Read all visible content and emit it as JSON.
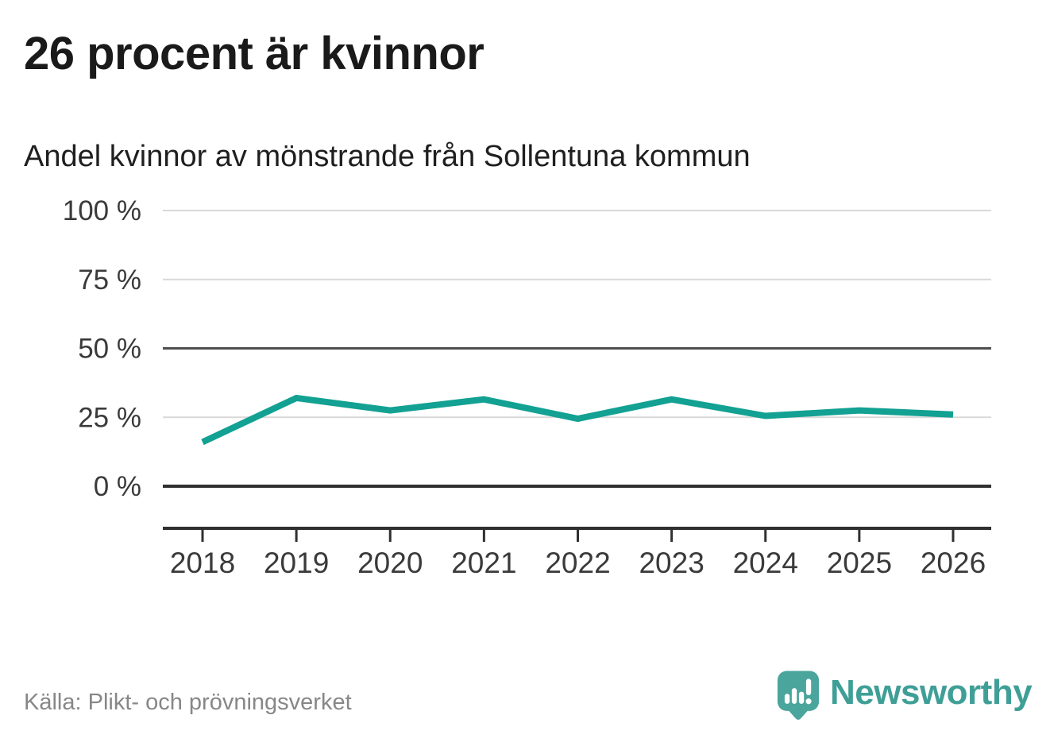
{
  "header": {
    "title": "26 procent är kvinnor",
    "subtitle": "Andel kvinnor av mönstrande från Sollentuna kommun"
  },
  "footer": {
    "source": "Källa: Plikt- och prövningsverket",
    "brand": "Newsworthy"
  },
  "colors": {
    "line": "#12a192",
    "grid_light": "#d9d9d9",
    "grid_mid": "#4f4f4f",
    "grid_zero": "#303030",
    "axis": "#303030",
    "axis_label": "#3a3a3a",
    "logo_bubble": "#4aa59d",
    "logo_wordmark": "#3f9f97"
  },
  "chart_data": {
    "type": "line",
    "title": "Andel kvinnor av mönstrande från Sollentuna kommun",
    "x": [
      "2018",
      "2019",
      "2020",
      "2021",
      "2022",
      "2023",
      "2024",
      "2025",
      "2026"
    ],
    "series": [
      {
        "name": "Andel kvinnor av mönstrande",
        "values": [
          16,
          32,
          27.5,
          31.5,
          24.5,
          31.5,
          25.5,
          27.5,
          26
        ]
      }
    ],
    "xlabel": "",
    "ylabel": "",
    "ylim": [
      0,
      100
    ],
    "grid": true,
    "legend_position": "none",
    "yticks": [
      {
        "value": 100,
        "label": "100 %",
        "style": "light"
      },
      {
        "value": 75,
        "label": "75 %",
        "style": "light"
      },
      {
        "value": 50,
        "label": "50 %",
        "style": "mid"
      },
      {
        "value": 25,
        "label": "25 %",
        "style": "light"
      },
      {
        "value": 0,
        "label": "0 %",
        "style": "zero"
      }
    ]
  }
}
